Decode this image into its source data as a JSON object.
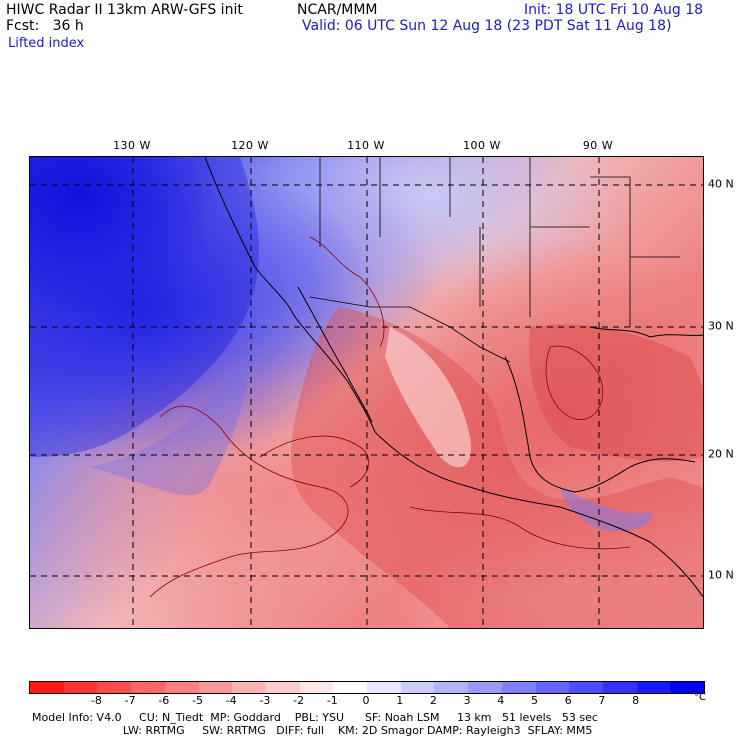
{
  "header": {
    "title_left": "HIWC Radar II 13km ARW-GFS init",
    "title_mid": "NCAR/MMM",
    "init": "Init: 18 UTC Fri 10 Aug 18",
    "fcst": "Fcst:   36 h",
    "valid": "Valid: 06 UTC Sun 12 Aug 18 (23 PDT Sat 11 Aug 18)",
    "field": "Lifted index"
  },
  "map": {
    "longitude_labels": [
      "130 W",
      "120 W",
      "110 W",
      "100 W",
      "90 W"
    ],
    "latitude_labels": [
      "40 N",
      "30 N",
      "20 N",
      "10 N"
    ]
  },
  "colorbar": {
    "colors": [
      "#ff1a1a",
      "#ff3333",
      "#ff4d4d",
      "#ff6666",
      "#ff8080",
      "#ff9999",
      "#ffb3b3",
      "#ffcccc",
      "#ffe6e6",
      "#ffffff",
      "#e6e6ff",
      "#ccccff",
      "#b3b3ff",
      "#9999ff",
      "#8080ff",
      "#6666ff",
      "#4d4dff",
      "#3333ff",
      "#1a1aff",
      "#0000ee"
    ],
    "tick_labels": [
      "-8",
      "-7",
      "-6",
      "-5",
      "-4",
      "-3",
      "-2",
      "-1",
      "0",
      "1",
      "2",
      "3",
      "4",
      "5",
      "6",
      "7",
      "8"
    ],
    "unit": "°C"
  },
  "footer": {
    "line1": "Model Info: V4.0     CU: N_Tiedt  MP: Goddard    PBL: YSU      SF: Noah LSM     13 km   51 levels   53 sec",
    "line2": "                          LW: RRTMG     SW: RRTMG   DIFF: full    KM: 2D Smagor DAMP: Rayleigh3  SFLAY: MM5"
  }
}
